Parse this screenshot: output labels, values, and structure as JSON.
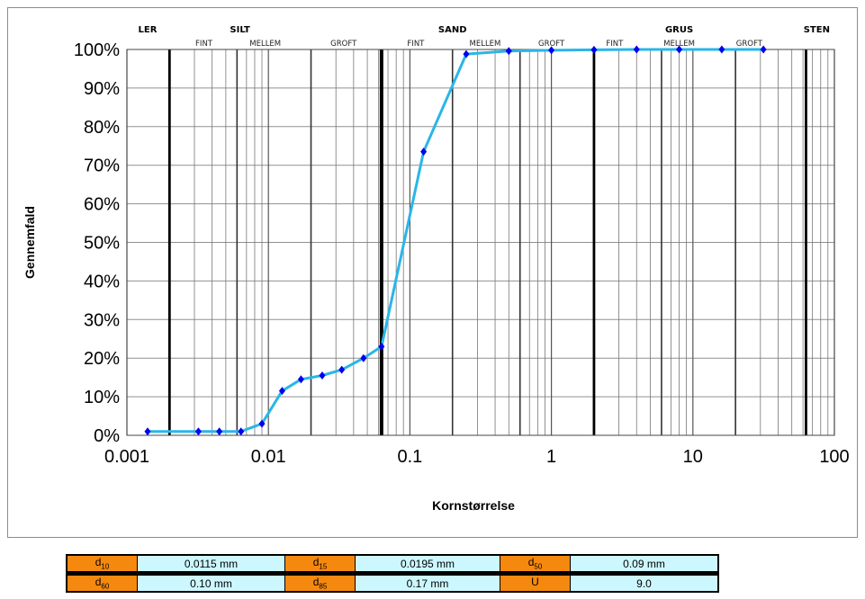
{
  "chart_data": {
    "type": "line",
    "xscale": "log",
    "xlim": [
      0.001,
      100
    ],
    "ylim": [
      0,
      100
    ],
    "xlabel": "Kornstørrelse",
    "ylabel": "Gennemfald",
    "x_tick_labels": [
      "0.001",
      "0.01",
      "0.1",
      "1",
      "10",
      "100"
    ],
    "y_tick_labels": [
      "0%",
      "10%",
      "20%",
      "30%",
      "40%",
      "50%",
      "60%",
      "70%",
      "80%",
      "90%",
      "100%"
    ],
    "line_color": "#29b6e8",
    "marker_color": "#0000ee",
    "fraction_labels": [
      {
        "text": "LER",
        "x": 0.0014,
        "level": "major"
      },
      {
        "text": "SILT",
        "x": 0.0063,
        "level": "major"
      },
      {
        "text": "FINT",
        "x": 0.0035,
        "level": "minor"
      },
      {
        "text": "MELLEM",
        "x": 0.0095,
        "level": "minor"
      },
      {
        "text": "GROFT",
        "x": 0.034,
        "level": "minor"
      },
      {
        "text": "SAND",
        "x": 0.2,
        "level": "major"
      },
      {
        "text": "FINT",
        "x": 0.11,
        "level": "minor"
      },
      {
        "text": "MELLEM",
        "x": 0.34,
        "level": "minor"
      },
      {
        "text": "GROFT",
        "x": 1.0,
        "level": "minor"
      },
      {
        "text": "GRUS",
        "x": 8.0,
        "level": "major"
      },
      {
        "text": "FINT",
        "x": 2.8,
        "level": "minor"
      },
      {
        "text": "MELLEM",
        "x": 8.0,
        "level": "minor"
      },
      {
        "text": "GROFT",
        "x": 25,
        "level": "minor"
      },
      {
        "text": "STEN",
        "x": 75,
        "level": "major"
      }
    ],
    "series": [
      {
        "x": [
          0.0014,
          0.0032,
          0.0045,
          0.0064,
          0.009,
          0.0125,
          0.017,
          0.024,
          0.033,
          0.047,
          0.063,
          0.125,
          0.25,
          0.5,
          1,
          2,
          4,
          8,
          16,
          31.5
        ],
        "y": [
          1,
          1,
          1,
          1,
          3,
          11.5,
          14.5,
          15.5,
          17,
          20,
          23,
          73.5,
          98.8,
          99.6,
          99.8,
          99.9,
          100,
          100,
          100,
          100
        ]
      }
    ]
  },
  "stats": {
    "row1": [
      {
        "label_main": "d",
        "label_sub": "10",
        "value": "0.0115 mm"
      },
      {
        "label_main": "d",
        "label_sub": "15",
        "value": "0.0195 mm"
      },
      {
        "label_main": "d",
        "label_sub": "50",
        "value": "0.09 mm"
      }
    ],
    "row2": [
      {
        "label_main": "d",
        "label_sub": "60",
        "value": "0.10 mm"
      },
      {
        "label_main": "d",
        "label_sub": "85",
        "value": "0.17 mm"
      },
      {
        "label_main": "U",
        "label_sub": "",
        "value": "9.0"
      }
    ]
  }
}
